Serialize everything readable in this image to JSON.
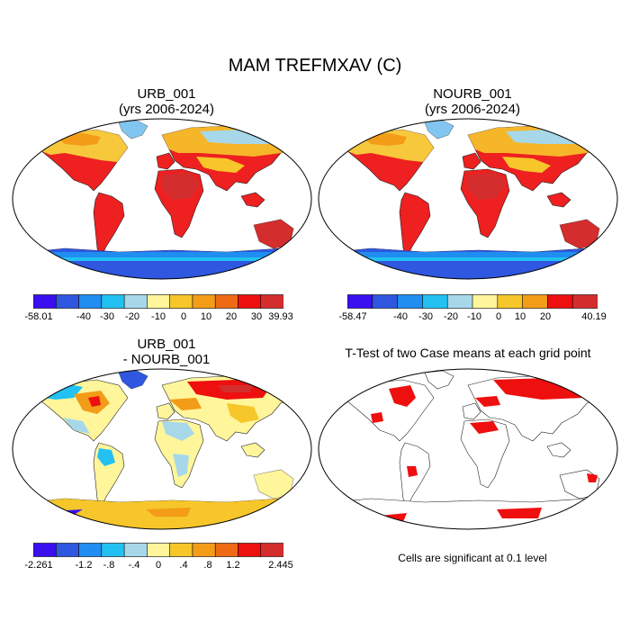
{
  "figure": {
    "title": "MAM TREFMXAV (C)"
  },
  "panels": [
    {
      "id": "urb",
      "title_line1": "URB_001",
      "title_line2": "(yrs 2006-2024)",
      "colorbar": {
        "colors": [
          "#3a0ff0",
          "#2f57e0",
          "#1f8ef0",
          "#22c1f2",
          "#a6d8ea",
          "#fff59b",
          "#f6c62a",
          "#f29c18",
          "#ee6a14",
          "#ee0f0f",
          "#d42d2d"
        ],
        "labels": [
          "-58.01",
          "-40",
          "-30",
          "-20",
          "-10",
          "0",
          "10",
          "20",
          "30",
          "39.93"
        ]
      }
    },
    {
      "id": "nourb",
      "title_line1": "NOURB_001",
      "title_line2": "(yrs 2006-2024)",
      "colorbar": {
        "colors": [
          "#3a0ff0",
          "#2f57e0",
          "#1f8ef0",
          "#22c1f2",
          "#a6d8ea",
          "#fff59b",
          "#f6c62a",
          "#f29c18",
          "#ee0f0f",
          "#d42d2d"
        ],
        "labels": [
          "-58.47",
          "-40",
          "-30",
          "-20",
          "-10",
          "0",
          "10",
          "20",
          "40.19"
        ]
      }
    },
    {
      "id": "diff",
      "title_line1": "URB_001",
      "title_line2": "- NOURB_001",
      "colorbar": {
        "colors": [
          "#3a0ff0",
          "#2f57e0",
          "#1f8ef0",
          "#22c1f2",
          "#a6d8ea",
          "#fff59b",
          "#f6c62a",
          "#f29c18",
          "#ee6a14",
          "#ee0f0f",
          "#d42d2d"
        ],
        "labels": [
          "-2.261",
          "-1.2",
          "-.8",
          "-.4",
          "0",
          ".4",
          ".8",
          "1.2",
          "2.445"
        ]
      }
    },
    {
      "id": "ttest",
      "title_line1": "T-Test of two Case means at each grid point",
      "note": "Cells are significant at 0.1 level"
    }
  ]
}
